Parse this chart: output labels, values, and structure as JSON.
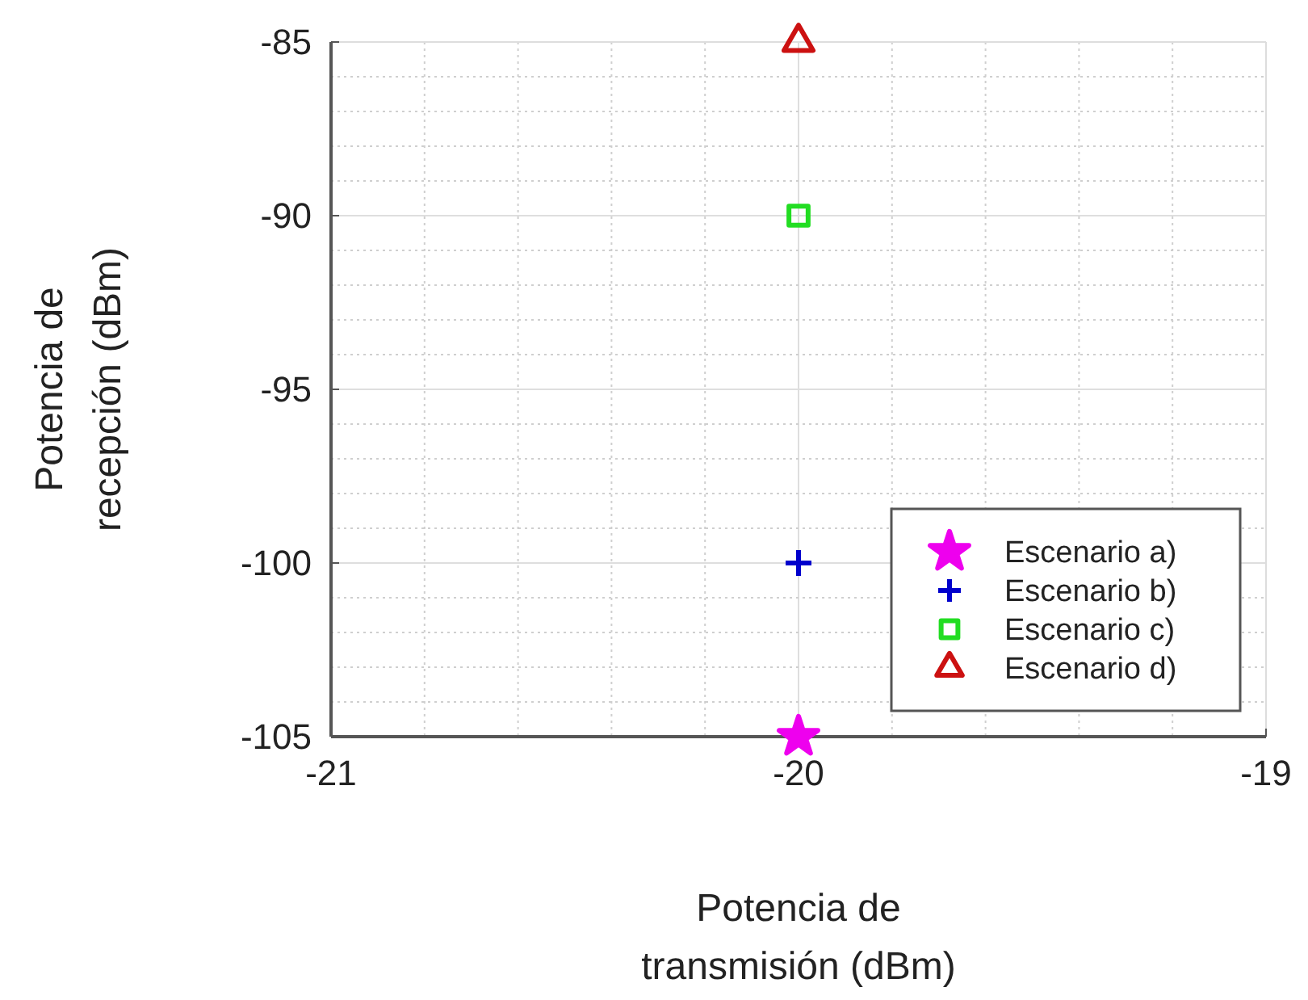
{
  "chart_data": {
    "type": "scatter",
    "xlabel": "Potencia de transmisión (dBm)",
    "ylabel": "Potencia de recepción (dBm)",
    "xlim": [
      -21,
      -19
    ],
    "xticks": [
      -21,
      {
        "value": -20.8,
        "label": null
      },
      {
        "value": -20.6,
        "label": null
      },
      {
        "value": -20.4,
        "label": null
      },
      {
        "value": -20.2,
        "label": null
      },
      -20,
      {
        "value": -19.8,
        "label": null
      },
      {
        "value": -19.6,
        "label": null
      },
      {
        "value": -19.4,
        "label": null
      },
      {
        "value": -19.2,
        "label": null
      },
      -19
    ],
    "ylim": [
      -105,
      -85
    ],
    "yticks": [
      -105,
      {
        "value": -104,
        "label": null
      },
      {
        "value": -103,
        "label": null
      },
      {
        "value": -102,
        "label": null
      },
      {
        "value": -101,
        "label": null
      },
      -100,
      {
        "value": -99,
        "label": null
      },
      {
        "value": -98,
        "label": null
      },
      {
        "value": -97,
        "label": null
      },
      {
        "value": -96,
        "label": null
      },
      -95,
      {
        "value": -94,
        "label": null
      },
      {
        "value": -93,
        "label": null
      },
      {
        "value": -92,
        "label": null
      },
      {
        "value": -91,
        "label": null
      },
      -90,
      {
        "value": -89,
        "label": null
      },
      {
        "value": -88,
        "label": null
      },
      {
        "value": -87,
        "label": null
      },
      {
        "value": -86,
        "label": null
      },
      -85
    ],
    "grid": true,
    "legend": "bottom right",
    "x": [
      -20
    ],
    "series": [
      {
        "name": "Escenario a)",
        "color": "#ee00ee",
        "marker": "star",
        "values": [
          -105
        ]
      },
      {
        "name": "Escenario b)",
        "color": "#0000cc",
        "marker": "cross",
        "values": [
          -100
        ]
      },
      {
        "name": "Escenario c)",
        "color": "#22dd22",
        "marker": "square",
        "values": [
          -90
        ]
      },
      {
        "name": "Escenario d)",
        "color": "#cc1111",
        "marker": "triangle",
        "values": [
          -85
        ]
      }
    ]
  }
}
